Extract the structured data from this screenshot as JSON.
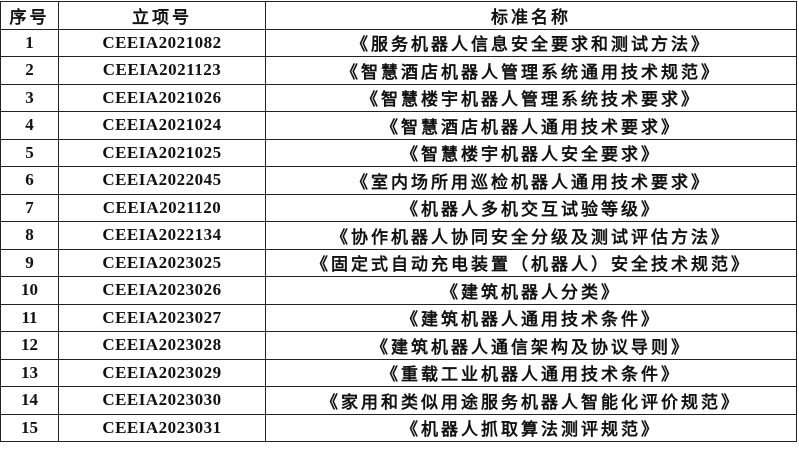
{
  "table": {
    "headers": [
      "序号",
      "立项号",
      "标准名称"
    ],
    "rows": [
      [
        "1",
        "CEEIA2021082",
        "《服务机器人信息安全要求和测试方法》"
      ],
      [
        "2",
        "CEEIA2021123",
        "《智慧酒店机器人管理系统通用技术规范》"
      ],
      [
        "3",
        "CEEIA2021026",
        "《智慧楼宇机器人管理系统技术要求》"
      ],
      [
        "4",
        "CEEIA2021024",
        "《智慧酒店机器人通用技术要求》"
      ],
      [
        "5",
        "CEEIA2021025",
        "《智慧楼宇机器人安全要求》"
      ],
      [
        "6",
        "CEEIA2022045",
        "《室内场所用巡检机器人通用技术要求》"
      ],
      [
        "7",
        "CEEIA2021120",
        "《机器人多机交互试验等级》"
      ],
      [
        "8",
        "CEEIA2022134",
        "《协作机器人协同安全分级及测试评估方法》"
      ],
      [
        "9",
        "CEEIA2023025",
        "《固定式自动充电装置（机器人）安全技术规范》"
      ],
      [
        "10",
        "CEEIA2023026",
        "《建筑机器人分类》"
      ],
      [
        "11",
        "CEEIA2023027",
        "《建筑机器人通用技术条件》"
      ],
      [
        "12",
        "CEEIA2023028",
        "《建筑机器人通信架构及协议导则》"
      ],
      [
        "13",
        "CEEIA2023029",
        "《重载工业机器人通用技术条件》"
      ],
      [
        "14",
        "CEEIA2023030",
        "《家用和类似用途服务机器人智能化评价规范》"
      ],
      [
        "15",
        "CEEIA2023031",
        "《机器人抓取算法测评规范》"
      ]
    ]
  }
}
